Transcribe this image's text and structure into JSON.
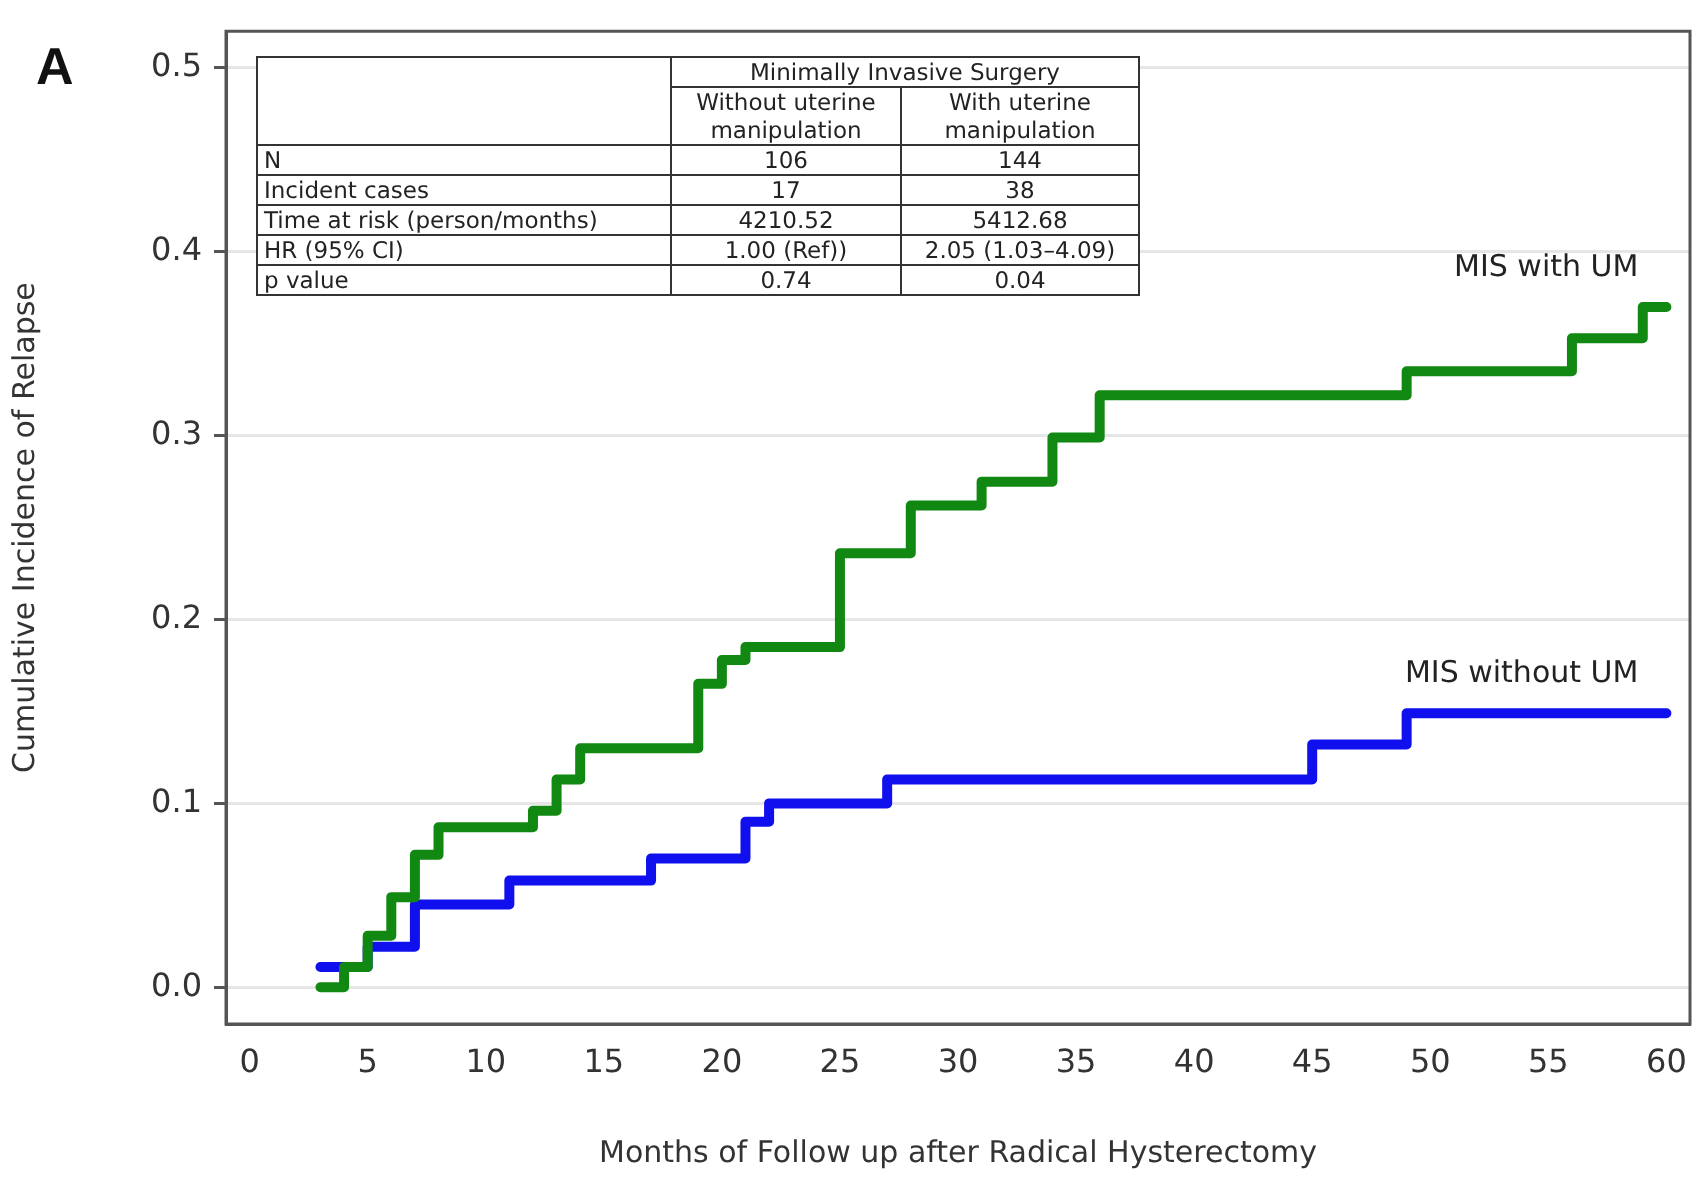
{
  "chart_data": {
    "type": "step",
    "xlabel": "Months of Follow up after Radical Hysterectomy",
    "ylabel": "Cumulative Incidence of Relapse",
    "xlim": [
      -1,
      61
    ],
    "xticks": [
      0,
      5,
      10,
      15,
      20,
      25,
      30,
      35,
      40,
      45,
      50,
      55,
      60
    ],
    "ylim": [
      -0.02,
      0.52
    ],
    "yticks": [
      {
        "value": 0,
        "label": "0.0"
      },
      0.1,
      0.2,
      0.3,
      0.4,
      0.5
    ],
    "grid": "y",
    "legend": false,
    "marker": "none",
    "line_style": "solid",
    "series": [
      {
        "name": "MIS with UM",
        "color": "#118811",
        "x": [
          3,
          4,
          5,
          6,
          7,
          8,
          12,
          13,
          14,
          19,
          20,
          21,
          25,
          28,
          31,
          34,
          36,
          49,
          56,
          59,
          60
        ],
        "values": [
          0.0,
          0.011,
          0.028,
          0.049,
          0.072,
          0.087,
          0.096,
          0.113,
          0.13,
          0.165,
          0.178,
          0.185,
          0.236,
          0.262,
          0.275,
          0.299,
          0.322,
          0.335,
          0.353,
          0.37,
          0.37
        ]
      },
      {
        "name": "MIS without UM",
        "color": "#1010ee",
        "x": [
          3,
          5,
          7,
          11,
          17,
          21,
          22,
          27,
          45,
          49,
          60
        ],
        "values": [
          0.011,
          0.022,
          0.045,
          0.058,
          0.07,
          0.09,
          0.1,
          0.113,
          0.132,
          0.149,
          0.149
        ]
      }
    ],
    "annotations": [
      "A",
      "Minimally Invasive Surgery",
      "Without uterine manipulation",
      "With uterine manipulation",
      "N",
      "106",
      "144",
      "Incident cases",
      "17",
      "38",
      "Time at risk (person/months)",
      "4210.52",
      "5412.68",
      "HR (95% CI)",
      "1.00 (Ref))",
      "2.05 (1.03–4.09)",
      "p value",
      "0.74",
      "0.04"
    ]
  }
}
